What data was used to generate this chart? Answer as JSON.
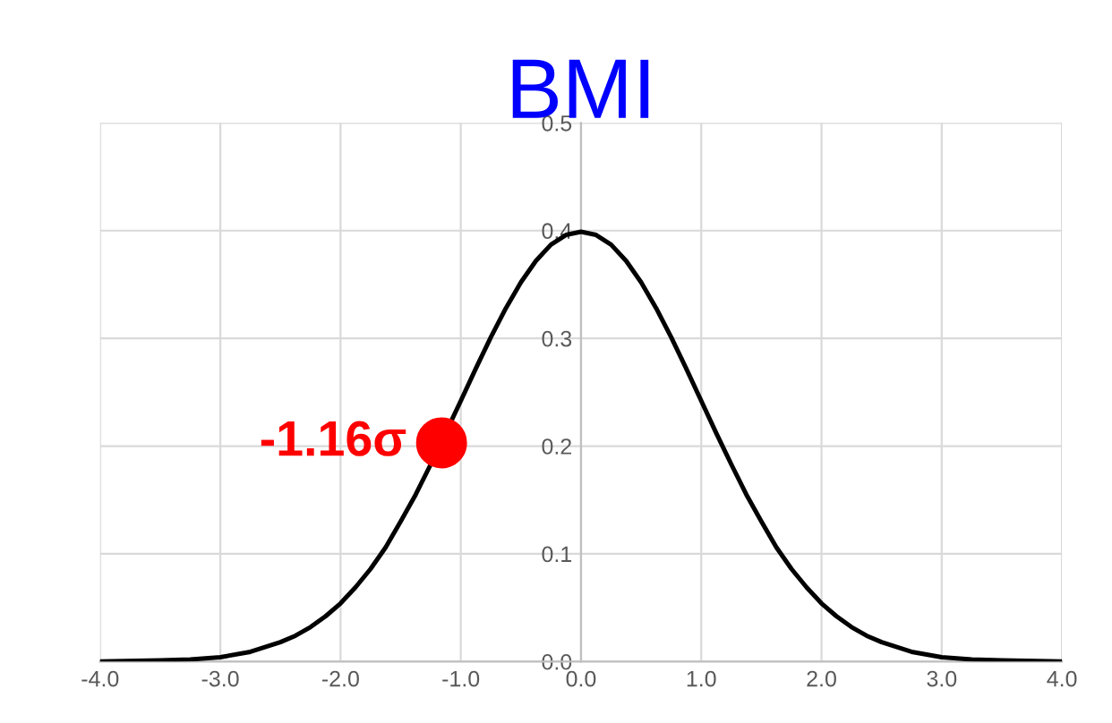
{
  "chart_data": {
    "type": "line",
    "title": "BMI",
    "x": [
      -4,
      -3.5,
      -3.25,
      -3,
      -2.75,
      -2.5,
      -2.375,
      -2.25,
      -2.125,
      -2,
      -1.875,
      -1.75,
      -1.625,
      -1.5,
      -1.375,
      -1.25,
      -1,
      -0.875,
      -0.75,
      -0.625,
      -0.5,
      -0.375,
      -0.25,
      -0.125,
      0,
      0.125,
      0.25,
      0.375,
      0.5,
      0.625,
      0.75,
      0.875,
      1,
      1.125,
      1.25,
      1.375,
      1.5,
      1.625,
      1.75,
      1.875,
      2,
      2.125,
      2.25,
      2.375,
      2.5,
      2.75,
      3,
      3.25,
      3.5,
      4
    ],
    "series": [
      {
        "color": "#000000",
        "marker": "none",
        "values": [
          0.0,
          0.001,
          0.002,
          0.004,
          0.009,
          0.018,
          0.024,
          0.032,
          0.042,
          0.054,
          0.069,
          0.086,
          0.106,
          0.13,
          0.155,
          0.183,
          0.242,
          0.272,
          0.301,
          0.328,
          0.352,
          0.372,
          0.387,
          0.396,
          0.399,
          0.396,
          0.387,
          0.372,
          0.352,
          0.328,
          0.301,
          0.272,
          0.242,
          0.212,
          0.183,
          0.155,
          0.13,
          0.106,
          0.086,
          0.069,
          0.054,
          0.042,
          0.032,
          0.024,
          0.018,
          0.009,
          0.004,
          0.002,
          0.001,
          0.0
        ]
      },
      {
        "type": "scatter",
        "color": "#ff0000",
        "marker": "circle",
        "x": [
          -1.16
        ],
        "values": [
          0.203
        ]
      }
    ],
    "annotations": [
      {
        "text": "-1.16σ",
        "x": -1.16,
        "y": 0.203
      }
    ],
    "xlim": [
      -4,
      4
    ],
    "ylim": [
      0,
      0.5
    ],
    "xticks": [
      {
        "value": -4,
        "label": "-4.0"
      },
      {
        "value": -3,
        "label": "-3.0"
      },
      {
        "value": -2,
        "label": "-2.0"
      },
      {
        "value": -1,
        "label": "-1.0"
      },
      {
        "value": 0,
        "label": "0.0"
      },
      {
        "value": 1,
        "label": "1.0"
      },
      {
        "value": 2,
        "label": "2.0"
      },
      {
        "value": 3,
        "label": "3.0"
      },
      {
        "value": 4,
        "label": "4.0"
      }
    ],
    "yticks": [
      {
        "value": 0,
        "label": "0.0"
      },
      {
        "value": 0.1,
        "label": "0.1"
      },
      {
        "value": 0.2,
        "label": "0.2"
      },
      {
        "value": 0.3,
        "label": "0.3"
      },
      {
        "value": 0.4,
        "label": "0.4"
      },
      {
        "value": 0.5,
        "label": "0.5"
      }
    ],
    "grid": true,
    "legend": false
  }
}
